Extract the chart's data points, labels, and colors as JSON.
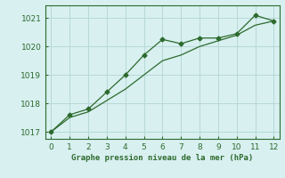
{
  "line1_x": [
    0,
    1,
    2,
    3,
    4,
    5,
    6,
    7,
    8,
    9,
    10,
    11,
    12
  ],
  "line1_y": [
    1017.0,
    1017.6,
    1017.8,
    1018.4,
    1019.0,
    1019.7,
    1020.25,
    1020.1,
    1020.3,
    1020.3,
    1020.45,
    1021.1,
    1020.9
  ],
  "line2_x": [
    0,
    1,
    2,
    3,
    4,
    5,
    6,
    7,
    8,
    9,
    10,
    11,
    12
  ],
  "line2_y": [
    1017.0,
    1017.5,
    1017.7,
    1018.1,
    1018.5,
    1019.0,
    1019.5,
    1019.7,
    1020.0,
    1020.2,
    1020.4,
    1020.75,
    1020.9
  ],
  "line_color": "#2d6a2d",
  "bg_color": "#d8f0f0",
  "grid_color": "#b8d8d8",
  "xlabel": "Graphe pression niveau de la mer (hPa)",
  "ylim": [
    1016.75,
    1021.45
  ],
  "xlim": [
    -0.3,
    12.3
  ],
  "yticks": [
    1017,
    1018,
    1019,
    1020,
    1021
  ],
  "xticks": [
    0,
    1,
    2,
    3,
    4,
    5,
    6,
    7,
    8,
    9,
    10,
    11,
    12
  ]
}
